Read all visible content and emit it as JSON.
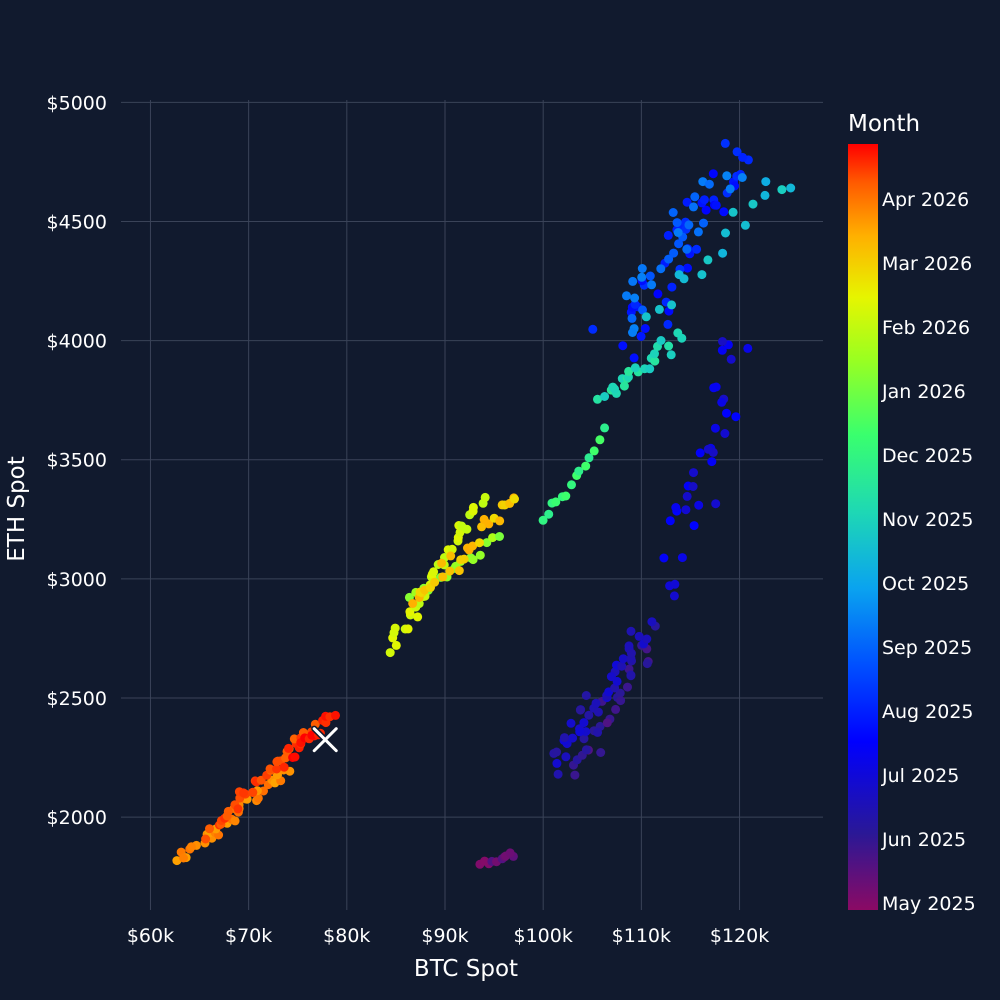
{
  "chart_data": {
    "type": "scatter",
    "xlabel": "BTC Spot",
    "ylabel": "ETH Spot",
    "xlim": [
      57000,
      128500
    ],
    "ylim": [
      1610,
      5010
    ],
    "x_ticks": [
      60000,
      70000,
      80000,
      90000,
      100000,
      110000,
      120000
    ],
    "x_tick_labels": [
      "$60k",
      "$70k",
      "$80k",
      "$90k",
      "$100k",
      "$110k",
      "$120k"
    ],
    "y_ticks": [
      2000,
      2500,
      3000,
      3500,
      4000,
      4500,
      5000
    ],
    "y_tick_labels": [
      "$2000",
      "$2500",
      "$3000",
      "$3500",
      "$4000",
      "$4500",
      "$5000"
    ],
    "grid": true,
    "colorbar": {
      "title": "Month",
      "colorscale": "jet",
      "colors": [
        "#8b0a64",
        "#2a1896",
        "#0000ff",
        "#0050ff",
        "#0aa3ef",
        "#1ed8b4",
        "#39ff6e",
        "#9bff20",
        "#e6f500",
        "#ffb000",
        "#ff5a00",
        "#ff0000"
      ],
      "labels": [
        "May 2025",
        "Jun 2025",
        "Jul 2025",
        "Aug 2025",
        "Sep 2025",
        "Oct 2025",
        "Nov 2025",
        "Dec 2025",
        "Jan 2026",
        "Feb 2026",
        "Mar 2026",
        "Apr 2026"
      ]
    },
    "marker_latest": {
      "x": 77800,
      "y": 2325,
      "symbol": "x",
      "color": "#ffffff"
    },
    "clusters": [
      {
        "t": 0.03,
        "n": 10,
        "x": [
          93500,
          97200
        ],
        "y": [
          1795,
          1850
        ],
        "spread": [
          900,
          12
        ]
      },
      {
        "t": 0.08,
        "n": 26,
        "x": [
          102800,
          110800
        ],
        "y": [
          2190,
          2680
        ],
        "spread": [
          1300,
          90
        ]
      },
      {
        "t": 0.12,
        "n": 42,
        "x": [
          101000,
          111000
        ],
        "y": [
          2220,
          2800
        ],
        "spread": [
          1300,
          80
        ]
      },
      {
        "t": 0.16,
        "n": 34,
        "x": [
          112500,
          120200
        ],
        "y": [
          2940,
          4010
        ],
        "spread": [
          2300,
          240
        ]
      },
      {
        "t": 0.21,
        "n": 46,
        "x": [
          108000,
          120300
        ],
        "y": [
          4020,
          4820
        ],
        "spread": [
          3300,
          170
        ]
      },
      {
        "t": 0.3,
        "n": 30,
        "x": [
          108500,
          118500
        ],
        "y": [
          4080,
          4700
        ],
        "spread": [
          2800,
          140
        ]
      },
      {
        "t": 0.41,
        "n": 16,
        "x": [
          111500,
          124700
        ],
        "y": [
          4120,
          4690
        ],
        "spread": [
          2200,
          100
        ]
      },
      {
        "t": 0.46,
        "n": 24,
        "x": [
          106000,
          113500
        ],
        "y": [
          3740,
          4030
        ],
        "spread": [
          1000,
          70
        ]
      },
      {
        "t": 0.53,
        "n": 14,
        "x": [
          100000,
          106200
        ],
        "y": [
          3230,
          3600
        ],
        "spread": [
          300,
          40
        ]
      },
      {
        "t": 0.63,
        "n": 16,
        "x": [
          86500,
          95500
        ],
        "y": [
          2920,
          3170
        ],
        "spread": [
          500,
          40
        ]
      },
      {
        "t": 0.7,
        "n": 34,
        "x": [
          84200,
          93800
        ],
        "y": [
          2700,
          3350
        ],
        "spread": [
          700,
          60
        ]
      },
      {
        "t": 0.79,
        "n": 28,
        "x": [
          86500,
          97300
        ],
        "y": [
          2900,
          3350
        ],
        "spread": [
          800,
          60
        ]
      },
      {
        "t": 0.86,
        "n": 36,
        "x": [
          62800,
          73800
        ],
        "y": [
          1820,
          2200
        ],
        "spread": [
          900,
          40
        ]
      },
      {
        "t": 0.93,
        "n": 36,
        "x": [
          66000,
          76300
        ],
        "y": [
          1930,
          2370
        ],
        "spread": [
          900,
          50
        ]
      },
      {
        "t": 0.98,
        "n": 18,
        "x": [
          73500,
          78900
        ],
        "y": [
          2230,
          2440
        ],
        "spread": [
          900,
          50
        ]
      }
    ]
  }
}
